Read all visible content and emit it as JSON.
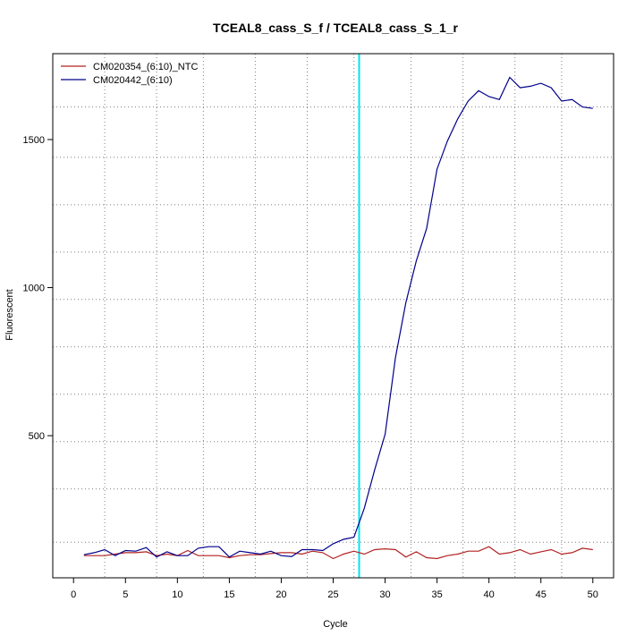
{
  "chart_data": {
    "type": "line",
    "title": "TCEAL8_cass_S_f / TCEAL8_cass_S_1_r",
    "xlabel": "Cycle",
    "ylabel": "Fluorescent",
    "xlim": [
      -2,
      52
    ],
    "ylim": [
      20,
      1790
    ],
    "x_ticks": [
      0,
      5,
      10,
      15,
      20,
      25,
      30,
      35,
      40,
      45,
      50
    ],
    "y_ticks": [
      500,
      1000,
      1500
    ],
    "grid": true,
    "grid_x": [
      3,
      8,
      12.5,
      17.5,
      22.5,
      27,
      32.5,
      37.5,
      42.5,
      47
    ],
    "grid_y": [
      140,
      320,
      480,
      640,
      800,
      960,
      1120,
      1280,
      1440,
      1610
    ],
    "threshold_x": 27.5,
    "threshold_color": "#00e5ee",
    "legend_position": "top-left",
    "x": [
      1,
      2,
      3,
      4,
      5,
      6,
      7,
      8,
      9,
      10,
      11,
      12,
      13,
      14,
      15,
      16,
      17,
      18,
      19,
      20,
      21,
      22,
      23,
      24,
      25,
      26,
      27,
      28,
      29,
      30,
      31,
      32,
      33,
      34,
      35,
      36,
      37,
      38,
      39,
      40,
      41,
      42,
      43,
      44,
      45,
      46,
      47,
      48,
      49,
      50
    ],
    "series": [
      {
        "name": "CM020354_(6:10)_NTC",
        "color": "#b22222",
        "values": [
          95,
          95,
          95,
          100,
          105,
          105,
          108,
          95,
          100,
          95,
          112,
          95,
          95,
          95,
          88,
          95,
          98,
          98,
          102,
          105,
          105,
          100,
          110,
          105,
          85,
          100,
          110,
          100,
          115,
          118,
          115,
          90,
          108,
          88,
          85,
          95,
          100,
          110,
          110,
          125,
          100,
          105,
          115,
          100,
          108,
          115,
          100,
          105,
          120,
          115
        ]
      },
      {
        "name": "CM020442_(6:10)",
        "color": "#00008b",
        "values": [
          98,
          105,
          115,
          95,
          112,
          110,
          122,
          90,
          108,
          95,
          95,
          120,
          125,
          125,
          90,
          110,
          105,
          100,
          110,
          95,
          92,
          115,
          115,
          112,
          135,
          150,
          157,
          255,
          385,
          505,
          765,
          950,
          1090,
          1200,
          1400,
          1495,
          1570,
          1630,
          1665,
          1645,
          1635,
          1710,
          1675,
          1680,
          1690,
          1675,
          1630,
          1635,
          1610,
          1605
        ]
      }
    ]
  }
}
